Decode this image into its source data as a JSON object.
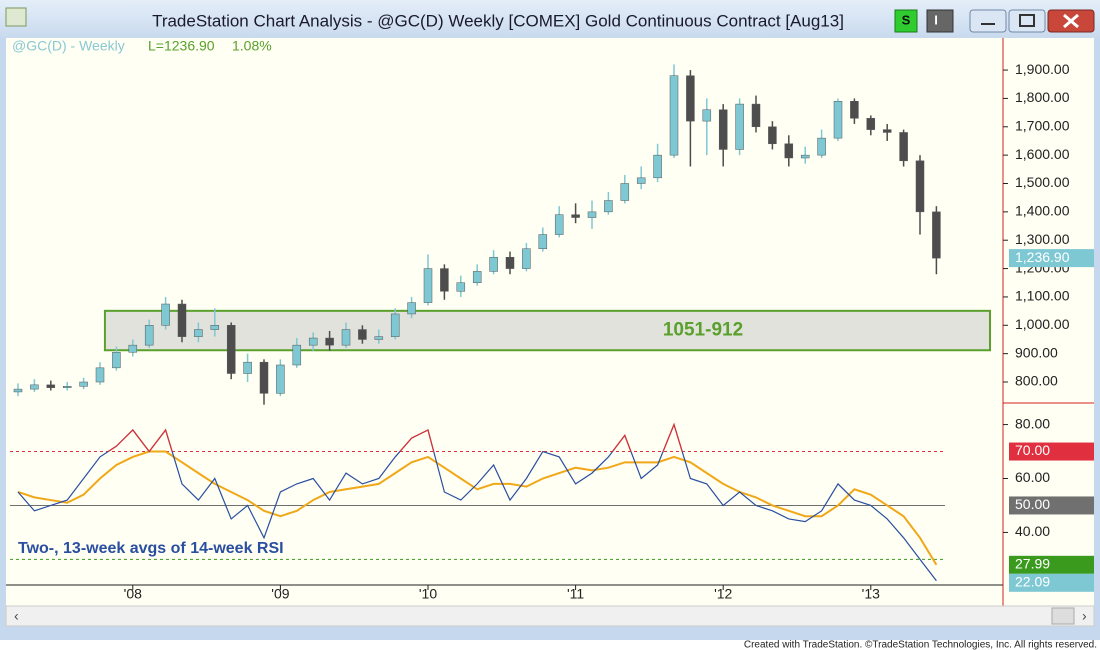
{
  "window": {
    "title": "TradeStation Chart Analysis - @GC(D) Weekly [COMEX] Gold Continuous Contract [Aug13]",
    "buttons": [
      "S",
      "I"
    ]
  },
  "legend": {
    "symbol": "@GC(D) - Weekly",
    "last": "L=1236.90",
    "change": "1.08%"
  },
  "footer": "Created with TradeStation. ©TradeStation Technologies, Inc. All rights reserved.",
  "chart_data": [
    {
      "type": "candlestick",
      "categories": [
        null,
        null,
        null,
        null,
        null,
        null,
        null,
        "'08",
        null,
        null,
        null,
        null,
        null,
        null,
        null,
        null,
        "'09",
        null,
        null,
        null,
        null,
        null,
        null,
        null,
        null,
        "'10",
        null,
        null,
        null,
        null,
        null,
        null,
        null,
        null,
        "'11",
        null,
        null,
        null,
        null,
        null,
        null,
        null,
        null,
        "'12",
        null,
        null,
        null,
        null,
        null,
        null,
        null,
        null,
        "'13",
        null,
        null,
        null,
        null
      ],
      "open": [
        765,
        775,
        790,
        780,
        785,
        800,
        850,
        905,
        930,
        1000,
        1075,
        960,
        985,
        1000,
        830,
        870,
        760,
        860,
        930,
        955,
        930,
        985,
        950,
        960,
        1040,
        1080,
        1200,
        1120,
        1150,
        1190,
        1240,
        1200,
        1270,
        1320,
        1390,
        1380,
        1400,
        1440,
        1500,
        1520,
        1600,
        1880,
        1720,
        1760,
        1620,
        1780,
        1700,
        1640,
        1590,
        1600,
        1660,
        1790,
        1730,
        1690,
        1680,
        1580,
        1400
      ],
      "high": [
        795,
        810,
        805,
        800,
        815,
        870,
        925,
        950,
        1020,
        1100,
        1090,
        1010,
        1060,
        1010,
        900,
        880,
        880,
        955,
        975,
        980,
        1010,
        1000,
        985,
        1060,
        1100,
        1250,
        1215,
        1175,
        1215,
        1265,
        1260,
        1290,
        1345,
        1420,
        1430,
        1440,
        1470,
        1530,
        1560,
        1640,
        1920,
        1900,
        1800,
        1780,
        1800,
        1810,
        1720,
        1670,
        1630,
        1690,
        1800,
        1800,
        1740,
        1710,
        1690,
        1600,
        1420
      ],
      "low": [
        750,
        765,
        770,
        770,
        775,
        790,
        840,
        890,
        920,
        985,
        940,
        940,
        960,
        810,
        800,
        720,
        750,
        850,
        910,
        910,
        920,
        935,
        935,
        950,
        1025,
        1070,
        1090,
        1100,
        1140,
        1180,
        1180,
        1190,
        1260,
        1310,
        1360,
        1340,
        1390,
        1430,
        1480,
        1505,
        1590,
        1560,
        1600,
        1560,
        1600,
        1680,
        1620,
        1560,
        1570,
        1590,
        1650,
        1710,
        1670,
        1650,
        1560,
        1320,
        1180
      ],
      "close": [
        775,
        790,
        780,
        785,
        800,
        850,
        905,
        930,
        1000,
        1075,
        960,
        985,
        1000,
        830,
        870,
        760,
        860,
        930,
        955,
        930,
        985,
        950,
        960,
        1040,
        1080,
        1200,
        1120,
        1150,
        1190,
        1240,
        1200,
        1270,
        1320,
        1390,
        1380,
        1400,
        1440,
        1500,
        1520,
        1600,
        1880,
        1720,
        1760,
        1620,
        1780,
        1700,
        1640,
        1590,
        1600,
        1660,
        1790,
        1730,
        1690,
        1680,
        1580,
        1400,
        1236.9
      ],
      "up_color": "#7ec8d4",
      "down_color": "#4d4d4d",
      "last_label": {
        "value": 1236.9,
        "label": "1,236.90"
      },
      "last_color": "#7ec8d4",
      "zone": {
        "label": "1051-912",
        "top": 1051,
        "bottom": 912,
        "color": "#5aa02c",
        "fill": "#e2e2dc"
      },
      "ylim": [
        726,
        2006
      ],
      "yticks": [
        {
          "value": 800,
          "label": "800.00"
        },
        {
          "value": 900,
          "label": "900.00"
        },
        {
          "value": 1000,
          "label": "1,000.00"
        },
        {
          "value": 1100,
          "label": "1,100.00"
        },
        {
          "value": 1200,
          "label": "1,200.00"
        },
        {
          "value": 1300,
          "label": "1,300.00"
        },
        {
          "value": 1400,
          "label": "1,400.00"
        },
        {
          "value": 1500,
          "label": "1,500.00"
        },
        {
          "value": 1600,
          "label": "1,600.00"
        },
        {
          "value": 1700,
          "label": "1,700.00"
        },
        {
          "value": 1800,
          "label": "1,800.00"
        },
        {
          "value": 1900,
          "label": "1,900.00"
        }
      ]
    },
    {
      "type": "line",
      "annotation": "Two-, 13-week avgs of 14-week RSI",
      "series": [
        {
          "name": "Two-week avg",
          "color": "#2a4fa0",
          "overbought_color": "#e03030",
          "values": [
            55,
            48,
            50,
            52,
            60,
            68,
            72,
            78,
            70,
            78,
            58,
            52,
            60,
            45,
            50,
            38,
            55,
            58,
            60,
            52,
            62,
            58,
            60,
            68,
            75,
            78,
            55,
            52,
            58,
            65,
            52,
            60,
            70,
            68,
            58,
            62,
            68,
            76,
            60,
            65,
            80,
            60,
            58,
            50,
            55,
            50,
            48,
            45,
            44,
            48,
            58,
            52,
            50,
            45,
            38,
            30,
            22.09
          ],
          "last_label": {
            "value": 22.09,
            "label": "22.09"
          },
          "tag_color": "#7ec8d4"
        },
        {
          "name": "13-week avg",
          "color": "#f0a818",
          "values": [
            55,
            53,
            52,
            51,
            54,
            60,
            65,
            68,
            70,
            70,
            66,
            62,
            58,
            55,
            52,
            48,
            46,
            48,
            52,
            55,
            56,
            57,
            58,
            62,
            66,
            68,
            64,
            60,
            56,
            58,
            58,
            57,
            60,
            62,
            64,
            63,
            64,
            66,
            66,
            66,
            68,
            66,
            62,
            58,
            55,
            53,
            50,
            48,
            46,
            46,
            50,
            56,
            54,
            50,
            46,
            38,
            27.99
          ],
          "last_label": {
            "value": 27.99,
            "label": "27.99"
          },
          "tag_color": "#3a9a1e"
        }
      ],
      "levels": [
        {
          "value": 70,
          "label": "70.00",
          "color": "#e03040",
          "style": "dashed"
        },
        {
          "value": 50,
          "label": "50.00",
          "color": "#707070",
          "style": "solid"
        },
        {
          "value": 30,
          "color": "#3a9a1e",
          "style": "dashed"
        }
      ],
      "ylim": [
        20.5,
        88
      ],
      "yticks": [
        {
          "value": 40,
          "label": "40.00"
        },
        {
          "value": 60,
          "label": "60.00"
        },
        {
          "value": 80,
          "label": "80.00"
        }
      ]
    }
  ]
}
